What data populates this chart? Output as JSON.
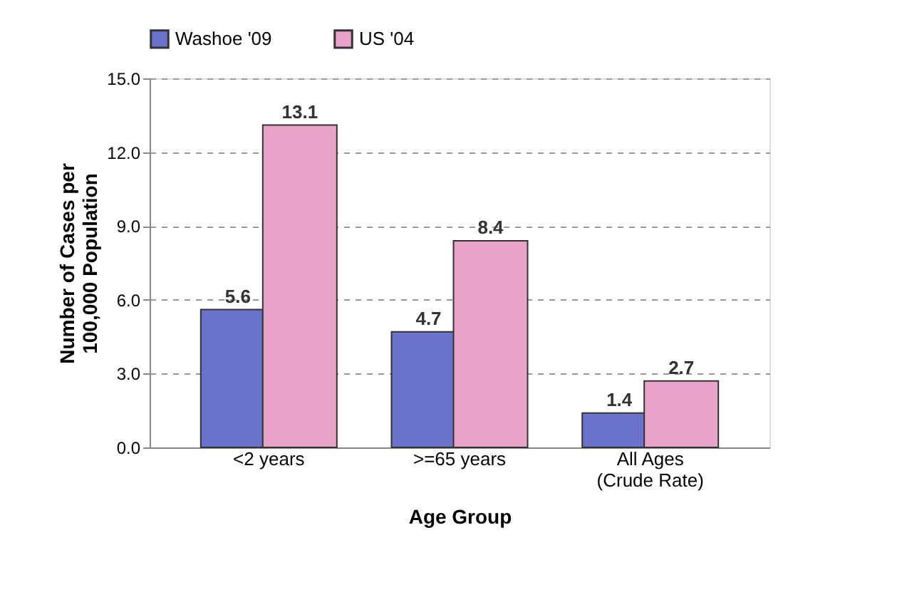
{
  "chart_data": {
    "type": "bar",
    "xlabel": "Age Group",
    "ylabel": "Number of Cases per\n100,000 Population",
    "categories": [
      "<2 years",
      ">=65 years",
      "All Ages\n(Crude Rate)"
    ],
    "series": [
      {
        "name": "Washoe '09",
        "color": "#6a73cc",
        "values": [
          5.6,
          4.7,
          1.4
        ]
      },
      {
        "name": "US '04",
        "color": "#e9a3c9",
        "values": [
          13.1,
          8.4,
          2.7
        ]
      }
    ],
    "ylim": [
      0,
      15
    ],
    "yticks": [
      {
        "value": 0,
        "label": "0.0"
      },
      {
        "value": 3,
        "label": "3.0"
      },
      {
        "value": 6,
        "label": "6.0"
      },
      {
        "value": 9,
        "label": "9.0"
      },
      {
        "value": 12,
        "label": "12.0"
      },
      {
        "value": 15,
        "label": "15.0"
      }
    ],
    "grid": "y",
    "legend": "top",
    "data_labels": true
  }
}
